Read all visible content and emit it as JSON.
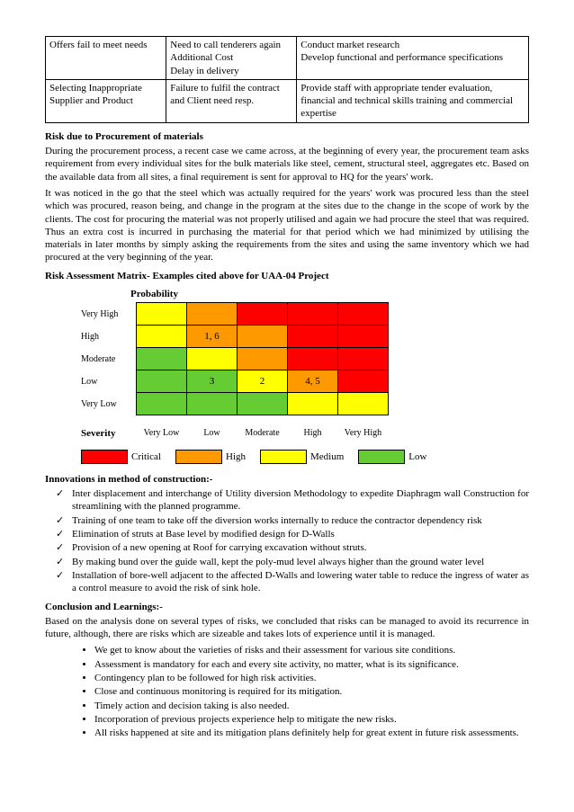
{
  "table": {
    "rows": [
      [
        "Offers fail to meet needs",
        "Need to call tenderers again\nAdditional Cost\nDelay in delivery",
        "Conduct market research\nDevelop functional and performance specifications"
      ],
      [
        "Selecting Inappropriate Supplier and Product",
        "Failure to fulfil the contract and Client need resp.",
        "Provide staff with appropriate tender evaluation, financial and technical skills training and commercial expertise"
      ]
    ],
    "col_widths": [
      "25%",
      "27%",
      "48%"
    ]
  },
  "sec1": {
    "title": "Risk due to Procurement of materials",
    "p1": "During the procurement process, a recent case we came across, at the beginning of every year, the procurement team asks requirement from every individual sites for the bulk materials like steel, cement, structural steel, aggregates etc. Based on the available data from all sites, a final requirement is sent for approval to HQ for the years' work.",
    "p2": "It was noticed in the go that the steel which was actually required for the years' work was procured less than the steel which was procured, reason being, and change in the program at the sites due to the change in the scope of work by the clients. The cost for procuring the material was not properly utilised and again we had procure the steel that was required. Thus an extra cost is incurred in purchasing the material for that period which we had minimized by utilising the materials in later months by simply asking the requirements from the sites and using the same inventory which we had procured at the very beginning of the year."
  },
  "matrix": {
    "title": "Risk Assessment Matrix- Examples cited above for UAA-04 Project",
    "prob_label": "Probability",
    "sev_label": "Severity",
    "row_labels": [
      "Very High",
      "High",
      "Moderate",
      "Low",
      "Very Low"
    ],
    "col_labels": [
      "Very Low",
      "Low",
      "Moderate",
      "High",
      "Very High"
    ],
    "colors": {
      "critical": "#ff0000",
      "high": "#ff9900",
      "medium": "#ffff00",
      "low": "#66cc33"
    },
    "cells": [
      [
        {
          "c": "medium"
        },
        {
          "c": "high"
        },
        {
          "c": "critical"
        },
        {
          "c": "critical"
        },
        {
          "c": "critical"
        }
      ],
      [
        {
          "c": "medium"
        },
        {
          "c": "high",
          "t": "1, 6"
        },
        {
          "c": "high"
        },
        {
          "c": "critical"
        },
        {
          "c": "critical"
        }
      ],
      [
        {
          "c": "low"
        },
        {
          "c": "medium"
        },
        {
          "c": "high"
        },
        {
          "c": "critical"
        },
        {
          "c": "critical"
        }
      ],
      [
        {
          "c": "low"
        },
        {
          "c": "low",
          "t": "3"
        },
        {
          "c": "medium",
          "t": "2"
        },
        {
          "c": "high",
          "t": "4, 5"
        },
        {
          "c": "critical"
        }
      ],
      [
        {
          "c": "low"
        },
        {
          "c": "low"
        },
        {
          "c": "low"
        },
        {
          "c": "medium"
        },
        {
          "c": "medium"
        }
      ]
    ],
    "legend": [
      {
        "c": "critical",
        "label": "Critical"
      },
      {
        "c": "high",
        "label": "High"
      },
      {
        "c": "medium",
        "label": "Medium"
      },
      {
        "c": "low",
        "label": "Low"
      }
    ]
  },
  "innov": {
    "title": "Innovations in method of construction:-",
    "items": [
      "Inter displacement and interchange of Utility diversion Methodology to expedite Diaphragm wall Construction for streamlining with the planned programme.",
      "Training of one team to take off the diversion works internally to reduce the contractor dependency risk",
      "Elimination of struts at Base level by modified design for D-Walls",
      "Provision of a new opening at Roof for carrying excavation without struts.",
      "By making bund over the guide wall, kept the poly-mud level always higher than the ground water level",
      "Installation of bore-well adjacent to the affected D-Walls and lowering water table to reduce the ingress of water as a control measure to avoid the risk of sink hole."
    ]
  },
  "concl": {
    "title": "Conclusion and Learnings:-",
    "p": "Based on the analysis done on several types of risks, we concluded that risks can be managed to avoid its recurrence in future, although, there are risks which are sizeable and takes lots of experience until it is managed.",
    "items": [
      "We get to know about the varieties of risks and their assessment for various site conditions.",
      "Assessment is mandatory for each and every site activity, no matter, what is its significance.",
      "Contingency plan to be followed for high risk activities.",
      "Close and continuous monitoring is required for its mitigation.",
      "Timely action and decision taking is also needed.",
      "Incorporation of previous projects experience help to mitigate the new risks.",
      "All risks happened at site and its mitigation plans definitely help for great extent in future risk assessments."
    ]
  }
}
